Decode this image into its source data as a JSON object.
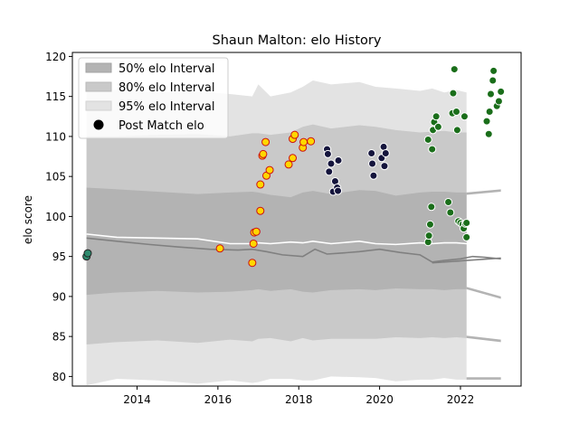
{
  "chart_data": {
    "type": "scatter",
    "title": "Shaun Malton: elo History",
    "xlabel": "",
    "ylabel": "elo score",
    "xlim": [
      2012.4,
      2023.5
    ],
    "ylim": [
      78.8,
      120.5
    ],
    "xticks": [
      2014,
      2016,
      2018,
      2020,
      2022
    ],
    "yticks": [
      80,
      85,
      90,
      95,
      100,
      105,
      110,
      115,
      120
    ],
    "grid": false,
    "legend": {
      "placement": "top-left",
      "entries": [
        "50% elo Interval",
        "80% elo Interval",
        "95% elo Interval",
        "Post Match elo"
      ]
    },
    "colors": {
      "band50": "#b3b3b3",
      "band80": "#c9c9c9",
      "band95": "#e3e3e3",
      "median_line": "#ffffff",
      "elo_line": "#808080",
      "marker_edge_default": "#ffffff"
    },
    "bands": {
      "x": [
        2012.75,
        2013.5,
        2014.5,
        2015.5,
        2016.3,
        2016.85,
        2017.0,
        2017.3,
        2017.8,
        2018.1,
        2018.35,
        2018.8,
        2019.5,
        2019.9,
        2020.4,
        2021.0,
        2021.3,
        2021.6,
        2021.9,
        2022.15
      ],
      "p95_upper": [
        116.0,
        115.8,
        115.5,
        115.6,
        115.3,
        115.0,
        116.5,
        115.0,
        115.5,
        116.2,
        117.0,
        116.5,
        116.8,
        116.2,
        116.0,
        115.7,
        116.0,
        115.5,
        115.8,
        115.5
      ],
      "p80_upper": [
        110.0,
        110.0,
        110.2,
        110.3,
        110.0,
        110.4,
        110.4,
        110.2,
        110.5,
        111.2,
        111.5,
        111.0,
        111.4,
        111.2,
        110.8,
        110.5,
        110.6,
        110.7,
        110.5,
        110.5
      ],
      "p50_upper": [
        103.6,
        103.4,
        103.1,
        102.8,
        103.0,
        103.1,
        103.0,
        102.7,
        102.4,
        103.0,
        103.2,
        102.8,
        103.3,
        103.2,
        102.6,
        103.0,
        103.1,
        103.1,
        103.0,
        103.0
      ],
      "median": [
        97.8,
        97.4,
        97.3,
        97.2,
        96.6,
        96.6,
        96.7,
        96.6,
        96.8,
        96.7,
        96.9,
        96.6,
        96.9,
        96.6,
        96.5,
        96.7,
        96.6,
        96.7,
        96.7,
        96.6
      ],
      "p50_lower": [
        90.2,
        90.5,
        90.7,
        90.5,
        90.6,
        90.8,
        90.9,
        90.7,
        90.9,
        90.6,
        90.5,
        90.8,
        90.9,
        90.8,
        91.0,
        90.9,
        90.9,
        90.8,
        90.9,
        90.9
      ],
      "p80_lower": [
        84.0,
        84.3,
        84.5,
        84.2,
        84.6,
        84.4,
        84.7,
        84.8,
        84.4,
        84.8,
        84.5,
        84.7,
        84.7,
        84.7,
        84.9,
        84.8,
        84.9,
        84.8,
        84.9,
        84.8
      ],
      "p95_lower": [
        78.9,
        79.7,
        79.5,
        79.1,
        79.5,
        79.2,
        79.3,
        79.7,
        79.7,
        79.5,
        79.5,
        80.0,
        79.9,
        79.8,
        79.4,
        79.6,
        79.6,
        79.8,
        79.6,
        79.6
      ],
      "tail_x_end": 2023.0,
      "tail_p50_upper": 103.4,
      "tail_median": 96.4,
      "tail_p50_lower": 89.7,
      "tail_p80_lower": 84.3,
      "tail_p95_lower": 79.6
    },
    "elo_line": {
      "x": [
        2012.75,
        2013.5,
        2014.3,
        2015.0,
        2015.8,
        2016.5,
        2016.85,
        2017.2,
        2017.6,
        2018.1,
        2018.4,
        2018.7,
        2019.0,
        2019.5,
        2020.0,
        2020.5,
        2021.0,
        2021.3,
        2021.6,
        2022.0,
        2022.3,
        2022.6,
        2023.0
      ],
      "y": [
        97.3,
        96.9,
        96.5,
        96.2,
        95.9,
        95.8,
        95.9,
        95.6,
        95.2,
        95.0,
        95.9,
        95.3,
        95.4,
        95.6,
        95.9,
        95.5,
        95.2,
        94.3,
        94.5,
        94.7,
        95.0,
        94.9,
        94.7
      ]
    },
    "elo_line_branch": {
      "x": [
        2021.3,
        2023.0
      ],
      "y": [
        94.2,
        94.8
      ]
    },
    "series": [
      {
        "fill": "#2e8b6e",
        "edge": "#222222",
        "points": [
          [
            2012.75,
            95.0
          ],
          [
            2012.78,
            95.4
          ]
        ]
      },
      {
        "fill": "#ffd700",
        "edge": "#cc1111",
        "points": [
          [
            2016.05,
            96.0
          ],
          [
            2016.85,
            94.2
          ],
          [
            2016.88,
            96.6
          ],
          [
            2016.9,
            98.0
          ],
          [
            2016.95,
            98.1
          ],
          [
            2017.05,
            100.7
          ],
          [
            2017.05,
            104.0
          ],
          [
            2017.1,
            107.6
          ],
          [
            2017.12,
            107.8
          ],
          [
            2017.18,
            109.3
          ],
          [
            2017.2,
            105.1
          ],
          [
            2017.28,
            105.8
          ],
          [
            2017.75,
            106.5
          ],
          [
            2017.85,
            107.3
          ],
          [
            2017.85,
            109.7
          ],
          [
            2017.9,
            110.2
          ],
          [
            2018.1,
            108.6
          ],
          [
            2018.12,
            109.3
          ],
          [
            2018.3,
            109.4
          ]
        ]
      },
      {
        "fill": "#14143c",
        "edge": "#ffffff",
        "points": [
          [
            2018.7,
            108.4
          ],
          [
            2018.72,
            107.8
          ],
          [
            2018.75,
            105.6
          ],
          [
            2018.8,
            106.6
          ],
          [
            2018.85,
            103.1
          ],
          [
            2018.9,
            104.4
          ],
          [
            2018.95,
            103.6
          ],
          [
            2018.97,
            103.2
          ],
          [
            2018.98,
            107.0
          ],
          [
            2019.8,
            107.9
          ],
          [
            2019.82,
            106.6
          ],
          [
            2019.85,
            105.1
          ],
          [
            2020.05,
            107.3
          ],
          [
            2020.1,
            108.7
          ],
          [
            2020.12,
            106.3
          ],
          [
            2020.15,
            107.9
          ]
        ]
      },
      {
        "fill": "#1a6e1a",
        "edge": "#ffffff",
        "points": [
          [
            2021.2,
            109.6
          ],
          [
            2021.2,
            96.8
          ],
          [
            2021.22,
            97.6
          ],
          [
            2021.25,
            99.0
          ],
          [
            2021.28,
            101.2
          ],
          [
            2021.3,
            108.4
          ],
          [
            2021.32,
            110.8
          ],
          [
            2021.35,
            111.8
          ],
          [
            2021.4,
            112.5
          ],
          [
            2021.45,
            111.2
          ],
          [
            2021.7,
            101.8
          ],
          [
            2021.75,
            100.5
          ],
          [
            2021.8,
            112.9
          ],
          [
            2021.82,
            115.4
          ],
          [
            2021.85,
            118.4
          ],
          [
            2021.9,
            113.1
          ],
          [
            2021.92,
            110.8
          ],
          [
            2021.95,
            99.4
          ],
          [
            2022.0,
            99.2
          ],
          [
            2022.05,
            99.0
          ],
          [
            2022.08,
            98.5
          ],
          [
            2022.1,
            112.5
          ],
          [
            2022.12,
            99.1
          ],
          [
            2022.15,
            97.4
          ],
          [
            2022.15,
            99.2
          ],
          [
            2022.65,
            111.9
          ],
          [
            2022.7,
            110.3
          ],
          [
            2022.72,
            113.1
          ],
          [
            2022.75,
            115.3
          ],
          [
            2022.8,
            117.0
          ],
          [
            2022.82,
            118.2
          ],
          [
            2022.9,
            113.8
          ],
          [
            2022.95,
            114.4
          ],
          [
            2023.0,
            115.6
          ]
        ]
      }
    ]
  }
}
